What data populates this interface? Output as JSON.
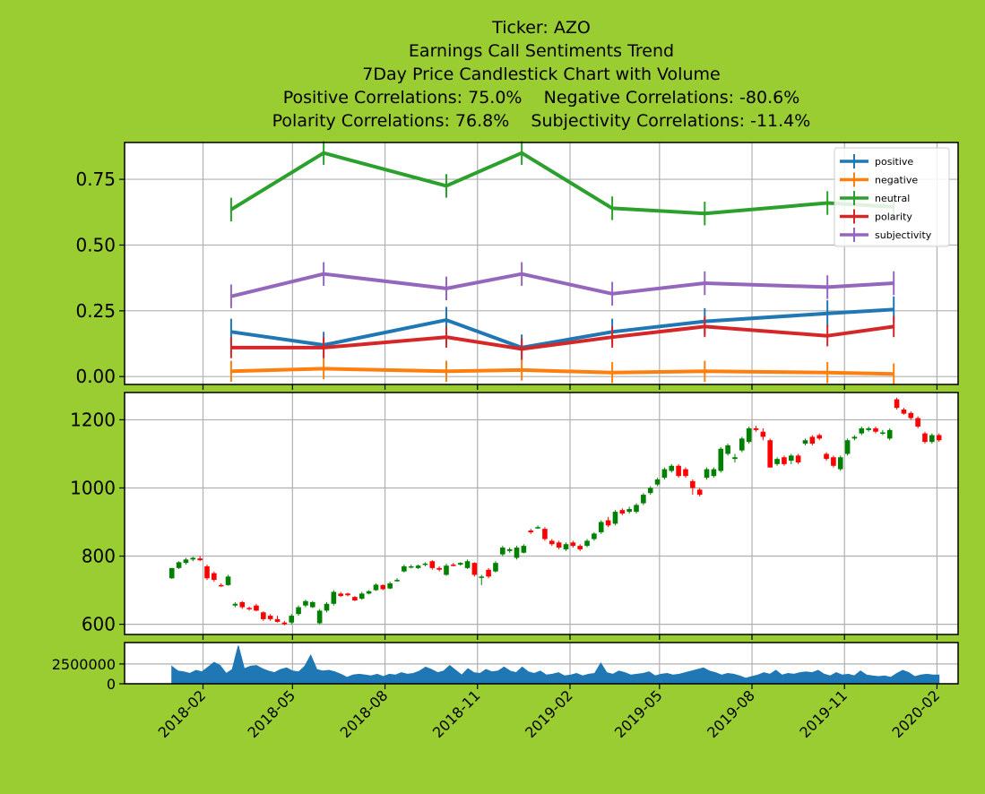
{
  "chart_title": {
    "line1": "Ticker: AZO",
    "line2": "Earnings Call Sentiments Trend",
    "line3": "7Day Price Candlestick Chart with Volume",
    "line4": "Positive Correlations: 75.0%    Negative Correlations: -80.6%",
    "line5": "Polarity Correlations: 76.8%    Subjectivity Correlations: -11.4%"
  },
  "colors": {
    "background": "#9acd32",
    "positive": "#1f77b4",
    "negative": "#ff7f0e",
    "neutral": "#2ca02c",
    "polarity": "#d62728",
    "subjectivity": "#9467bd",
    "up_candle": "#008000",
    "down_candle": "#ff0000",
    "volume": "#1f77b4",
    "grid": "#b0b0b0"
  },
  "chart_data": [
    {
      "type": "line",
      "name": "sentiments",
      "x": [
        "2018-03-01",
        "2018-06-01",
        "2018-10-01",
        "2018-12-15",
        "2019-03-15",
        "2019-06-15",
        "2019-10-15",
        "2019-12-20"
      ],
      "series": [
        {
          "name": "positive",
          "values": [
            0.17,
            0.12,
            0.215,
            0.11,
            0.17,
            0.21,
            0.24,
            0.255
          ],
          "err": 0.05
        },
        {
          "name": "negative",
          "values": [
            0.02,
            0.03,
            0.02,
            0.025,
            0.015,
            0.02,
            0.015,
            0.01
          ],
          "err": 0.04
        },
        {
          "name": "neutral",
          "values": [
            0.635,
            0.85,
            0.725,
            0.85,
            0.64,
            0.62,
            0.66,
            0.645
          ],
          "err": 0.045
        },
        {
          "name": "polarity",
          "values": [
            0.11,
            0.11,
            0.15,
            0.105,
            0.15,
            0.19,
            0.155,
            0.19
          ],
          "err": 0.04
        },
        {
          "name": "subjectivity",
          "values": [
            0.305,
            0.39,
            0.335,
            0.39,
            0.315,
            0.355,
            0.34,
            0.355
          ],
          "err": 0.045
        }
      ],
      "ylim": [
        -0.03,
        0.89
      ],
      "yticks": [
        0.0,
        0.25,
        0.5,
        0.75
      ],
      "ytick_labels": [
        "0.00",
        "0.25",
        "0.50",
        "0.75"
      ],
      "legend_position": "upper-right",
      "grid": true
    },
    {
      "type": "candlestick",
      "name": "price",
      "ylim": [
        570,
        1280
      ],
      "yticks": [
        600,
        800,
        1000,
        1200
      ],
      "ytick_labels": [
        "600",
        "800",
        "1000",
        "1200"
      ],
      "grid": true,
      "candles": [
        {
          "d": "2018-01-01",
          "o": 735,
          "h": 765,
          "l": 733,
          "c": 765
        },
        {
          "d": "2018-01-08",
          "o": 765,
          "h": 785,
          "l": 762,
          "c": 782
        },
        {
          "d": "2018-01-15",
          "o": 780,
          "h": 795,
          "l": 775,
          "c": 790
        },
        {
          "d": "2018-01-22",
          "o": 790,
          "h": 798,
          "l": 785,
          "c": 795
        },
        {
          "d": "2018-01-29",
          "o": 793,
          "h": 800,
          "l": 785,
          "c": 788
        },
        {
          "d": "2018-02-05",
          "o": 770,
          "h": 775,
          "l": 730,
          "c": 735
        },
        {
          "d": "2018-02-12",
          "o": 750,
          "h": 755,
          "l": 725,
          "c": 730
        },
        {
          "d": "2018-02-19",
          "o": 715,
          "h": 720,
          "l": 710,
          "c": 713
        },
        {
          "d": "2018-02-26",
          "o": 715,
          "h": 745,
          "l": 713,
          "c": 740
        },
        {
          "d": "2018-03-05",
          "o": 655,
          "h": 665,
          "l": 650,
          "c": 660
        },
        {
          "d": "2018-03-12",
          "o": 665,
          "h": 668,
          "l": 645,
          "c": 650
        },
        {
          "d": "2018-03-19",
          "o": 648,
          "h": 652,
          "l": 640,
          "c": 645
        },
        {
          "d": "2018-03-26",
          "o": 655,
          "h": 660,
          "l": 638,
          "c": 640
        },
        {
          "d": "2018-04-02",
          "o": 635,
          "h": 638,
          "l": 610,
          "c": 615
        },
        {
          "d": "2018-04-09",
          "o": 625,
          "h": 630,
          "l": 610,
          "c": 615
        },
        {
          "d": "2018-04-16",
          "o": 615,
          "h": 625,
          "l": 605,
          "c": 607
        },
        {
          "d": "2018-04-23",
          "o": 605,
          "h": 610,
          "l": 597,
          "c": 600
        },
        {
          "d": "2018-04-30",
          "o": 605,
          "h": 630,
          "l": 600,
          "c": 625
        },
        {
          "d": "2018-05-07",
          "o": 630,
          "h": 655,
          "l": 625,
          "c": 650
        },
        {
          "d": "2018-05-14",
          "o": 655,
          "h": 672,
          "l": 650,
          "c": 668
        },
        {
          "d": "2018-05-21",
          "o": 650,
          "h": 668,
          "l": 648,
          "c": 665
        },
        {
          "d": "2018-05-28",
          "o": 603,
          "h": 645,
          "l": 600,
          "c": 640
        },
        {
          "d": "2018-06-04",
          "o": 640,
          "h": 665,
          "l": 635,
          "c": 660
        },
        {
          "d": "2018-06-11",
          "o": 660,
          "h": 700,
          "l": 655,
          "c": 695
        },
        {
          "d": "2018-06-18",
          "o": 690,
          "h": 695,
          "l": 680,
          "c": 683
        },
        {
          "d": "2018-06-25",
          "o": 690,
          "h": 693,
          "l": 682,
          "c": 685
        },
        {
          "d": "2018-07-02",
          "o": 680,
          "h": 683,
          "l": 668,
          "c": 670
        },
        {
          "d": "2018-07-09",
          "o": 675,
          "h": 695,
          "l": 672,
          "c": 690
        },
        {
          "d": "2018-07-16",
          "o": 690,
          "h": 700,
          "l": 688,
          "c": 697
        },
        {
          "d": "2018-07-23",
          "o": 700,
          "h": 720,
          "l": 698,
          "c": 716
        },
        {
          "d": "2018-07-30",
          "o": 715,
          "h": 717,
          "l": 700,
          "c": 703
        },
        {
          "d": "2018-08-06",
          "o": 705,
          "h": 725,
          "l": 703,
          "c": 720
        },
        {
          "d": "2018-08-13",
          "o": 728,
          "h": 735,
          "l": 725,
          "c": 730
        },
        {
          "d": "2018-08-20",
          "o": 755,
          "h": 775,
          "l": 752,
          "c": 770
        },
        {
          "d": "2018-08-27",
          "o": 768,
          "h": 775,
          "l": 764,
          "c": 770
        },
        {
          "d": "2018-09-03",
          "o": 765,
          "h": 775,
          "l": 762,
          "c": 772
        },
        {
          "d": "2018-09-10",
          "o": 775,
          "h": 782,
          "l": 770,
          "c": 778
        },
        {
          "d": "2018-09-17",
          "o": 785,
          "h": 788,
          "l": 760,
          "c": 765
        },
        {
          "d": "2018-09-24",
          "o": 765,
          "h": 770,
          "l": 755,
          "c": 760
        },
        {
          "d": "2018-10-01",
          "o": 745,
          "h": 778,
          "l": 742,
          "c": 772
        },
        {
          "d": "2018-10-08",
          "o": 775,
          "h": 780,
          "l": 770,
          "c": 773
        },
        {
          "d": "2018-10-15",
          "o": 775,
          "h": 782,
          "l": 772,
          "c": 780
        },
        {
          "d": "2018-10-22",
          "o": 765,
          "h": 790,
          "l": 762,
          "c": 785
        },
        {
          "d": "2018-10-29",
          "o": 780,
          "h": 782,
          "l": 740,
          "c": 745
        },
        {
          "d": "2018-11-05",
          "o": 738,
          "h": 745,
          "l": 715,
          "c": 740
        },
        {
          "d": "2018-11-12",
          "o": 760,
          "h": 765,
          "l": 735,
          "c": 740
        },
        {
          "d": "2018-11-19",
          "o": 755,
          "h": 785,
          "l": 752,
          "c": 780
        },
        {
          "d": "2018-11-26",
          "o": 805,
          "h": 830,
          "l": 800,
          "c": 825
        },
        {
          "d": "2018-12-03",
          "o": 815,
          "h": 825,
          "l": 810,
          "c": 820
        },
        {
          "d": "2018-12-10",
          "o": 795,
          "h": 830,
          "l": 790,
          "c": 825
        },
        {
          "d": "2018-12-17",
          "o": 810,
          "h": 835,
          "l": 808,
          "c": 830
        },
        {
          "d": "2018-12-24",
          "o": 875,
          "h": 880,
          "l": 865,
          "c": 870
        },
        {
          "d": "2018-12-31",
          "o": 885,
          "h": 890,
          "l": 880,
          "c": 885
        },
        {
          "d": "2019-01-07",
          "o": 880,
          "h": 885,
          "l": 845,
          "c": 850
        },
        {
          "d": "2019-01-14",
          "o": 845,
          "h": 850,
          "l": 830,
          "c": 835
        },
        {
          "d": "2019-01-21",
          "o": 840,
          "h": 845,
          "l": 820,
          "c": 825
        },
        {
          "d": "2019-01-28",
          "o": 820,
          "h": 840,
          "l": 815,
          "c": 835
        },
        {
          "d": "2019-02-04",
          "o": 840,
          "h": 845,
          "l": 825,
          "c": 830
        },
        {
          "d": "2019-02-11",
          "o": 830,
          "h": 835,
          "l": 815,
          "c": 820
        },
        {
          "d": "2019-02-18",
          "o": 830,
          "h": 850,
          "l": 826,
          "c": 845
        },
        {
          "d": "2019-02-25",
          "o": 850,
          "h": 870,
          "l": 845,
          "c": 866
        },
        {
          "d": "2019-03-04",
          "o": 870,
          "h": 905,
          "l": 865,
          "c": 900
        },
        {
          "d": "2019-03-11",
          "o": 905,
          "h": 915,
          "l": 885,
          "c": 890
        },
        {
          "d": "2019-03-18",
          "o": 895,
          "h": 935,
          "l": 890,
          "c": 930
        },
        {
          "d": "2019-03-25",
          "o": 935,
          "h": 940,
          "l": 920,
          "c": 925
        },
        {
          "d": "2019-04-01",
          "o": 930,
          "h": 945,
          "l": 925,
          "c": 938
        },
        {
          "d": "2019-04-08",
          "o": 930,
          "h": 955,
          "l": 925,
          "c": 950
        },
        {
          "d": "2019-04-15",
          "o": 955,
          "h": 985,
          "l": 950,
          "c": 980
        },
        {
          "d": "2019-04-22",
          "o": 985,
          "h": 1005,
          "l": 980,
          "c": 1000
        },
        {
          "d": "2019-04-29",
          "o": 1010,
          "h": 1030,
          "l": 1005,
          "c": 1025
        },
        {
          "d": "2019-05-06",
          "o": 1030,
          "h": 1060,
          "l": 1025,
          "c": 1055
        },
        {
          "d": "2019-05-13",
          "o": 1050,
          "h": 1070,
          "l": 1045,
          "c": 1065
        },
        {
          "d": "2019-05-20",
          "o": 1065,
          "h": 1070,
          "l": 1030,
          "c": 1035
        },
        {
          "d": "2019-05-27",
          "o": 1055,
          "h": 1060,
          "l": 1030,
          "c": 1035
        },
        {
          "d": "2019-06-03",
          "o": 1020,
          "h": 1025,
          "l": 980,
          "c": 1000
        },
        {
          "d": "2019-06-10",
          "o": 995,
          "h": 1000,
          "l": 975,
          "c": 980
        },
        {
          "d": "2019-06-17",
          "o": 1030,
          "h": 1060,
          "l": 1025,
          "c": 1055
        },
        {
          "d": "2019-06-24",
          "o": 1035,
          "h": 1060,
          "l": 1030,
          "c": 1055
        },
        {
          "d": "2019-07-01",
          "o": 1050,
          "h": 1120,
          "l": 1045,
          "c": 1115
        },
        {
          "d": "2019-07-08",
          "o": 1100,
          "h": 1130,
          "l": 1095,
          "c": 1125
        },
        {
          "d": "2019-07-15",
          "o": 1085,
          "h": 1100,
          "l": 1075,
          "c": 1090
        },
        {
          "d": "2019-07-22",
          "o": 1110,
          "h": 1150,
          "l": 1105,
          "c": 1145
        },
        {
          "d": "2019-07-29",
          "o": 1135,
          "h": 1180,
          "l": 1130,
          "c": 1175
        },
        {
          "d": "2019-08-05",
          "o": 1175,
          "h": 1182,
          "l": 1165,
          "c": 1170
        },
        {
          "d": "2019-08-12",
          "o": 1165,
          "h": 1175,
          "l": 1140,
          "c": 1150
        },
        {
          "d": "2019-08-19",
          "o": 1140,
          "h": 1145,
          "l": 1060,
          "c": 1060
        },
        {
          "d": "2019-08-26",
          "o": 1070,
          "h": 1090,
          "l": 1065,
          "c": 1085
        },
        {
          "d": "2019-09-02",
          "o": 1090,
          "h": 1095,
          "l": 1065,
          "c": 1070
        },
        {
          "d": "2019-09-09",
          "o": 1080,
          "h": 1100,
          "l": 1070,
          "c": 1095
        },
        {
          "d": "2019-09-16",
          "o": 1095,
          "h": 1100,
          "l": 1070,
          "c": 1075
        },
        {
          "d": "2019-09-23",
          "o": 1130,
          "h": 1145,
          "l": 1125,
          "c": 1140
        },
        {
          "d": "2019-09-30",
          "o": 1150,
          "h": 1155,
          "l": 1125,
          "c": 1130
        },
        {
          "d": "2019-10-07",
          "o": 1155,
          "h": 1160,
          "l": 1140,
          "c": 1145
        },
        {
          "d": "2019-10-14",
          "o": 1100,
          "h": 1105,
          "l": 1080,
          "c": 1085
        },
        {
          "d": "2019-10-21",
          "o": 1090,
          "h": 1095,
          "l": 1060,
          "c": 1065
        },
        {
          "d": "2019-10-28",
          "o": 1055,
          "h": 1095,
          "l": 1050,
          "c": 1090
        },
        {
          "d": "2019-11-04",
          "o": 1100,
          "h": 1145,
          "l": 1095,
          "c": 1140
        },
        {
          "d": "2019-11-11",
          "o": 1145,
          "h": 1155,
          "l": 1140,
          "c": 1150
        },
        {
          "d": "2019-11-18",
          "o": 1160,
          "h": 1180,
          "l": 1155,
          "c": 1175
        },
        {
          "d": "2019-11-25",
          "o": 1170,
          "h": 1180,
          "l": 1165,
          "c": 1175
        },
        {
          "d": "2019-12-02",
          "o": 1175,
          "h": 1180,
          "l": 1160,
          "c": 1165
        },
        {
          "d": "2019-12-09",
          "o": 1160,
          "h": 1170,
          "l": 1155,
          "c": 1163
        },
        {
          "d": "2019-12-16",
          "o": 1145,
          "h": 1175,
          "l": 1140,
          "c": 1170
        },
        {
          "d": "2019-12-23",
          "o": 1260,
          "h": 1265,
          "l": 1230,
          "c": 1235
        },
        {
          "d": "2019-12-30",
          "o": 1230,
          "h": 1235,
          "l": 1215,
          "c": 1218
        },
        {
          "d": "2020-01-06",
          "o": 1220,
          "h": 1225,
          "l": 1200,
          "c": 1205
        },
        {
          "d": "2020-01-13",
          "o": 1205,
          "h": 1210,
          "l": 1175,
          "c": 1180
        },
        {
          "d": "2020-01-20",
          "o": 1160,
          "h": 1165,
          "l": 1130,
          "c": 1135
        },
        {
          "d": "2020-01-27",
          "o": 1135,
          "h": 1160,
          "l": 1130,
          "c": 1155
        },
        {
          "d": "2020-02-03",
          "o": 1155,
          "h": 1160,
          "l": 1135,
          "c": 1140
        }
      ]
    },
    {
      "type": "area",
      "name": "volume",
      "ylim": [
        0,
        5200000
      ],
      "yticks": [
        0,
        2500000
      ],
      "ytick_labels": [
        "0",
        "2500000"
      ],
      "grid": true,
      "x_start": "2018-01-01",
      "x_end": "2020-02-03",
      "values": [
        2200000,
        1600000,
        1500000,
        1300000,
        1700000,
        1500000,
        2100000,
        2700000,
        2300000,
        1300000,
        1800000,
        4800000,
        1900000,
        2200000,
        2300000,
        1900000,
        1600000,
        1400000,
        1800000,
        2000000,
        1600000,
        1500000,
        2200000,
        3600000,
        1800000,
        1600000,
        1700000,
        1500000,
        1200000,
        800000,
        1100000,
        1200000,
        1100000,
        1000000,
        1200000,
        900000,
        1200000,
        1100000,
        1400000,
        1200000,
        1300000,
        1600000,
        2100000,
        1800000,
        1400000,
        1600000,
        2300000,
        1700000,
        1100000,
        1900000,
        1400000,
        1300000,
        1800000,
        1500000,
        1600000,
        2100000,
        1600000,
        1400000,
        2100000,
        1500000,
        1300000,
        1600000,
        1100000,
        1200000,
        1400000,
        1000000,
        1100000,
        1300000,
        1000000,
        1200000,
        1300000,
        2600000,
        1400000,
        1200000,
        1600000,
        1400000,
        1100000,
        1200000,
        1300000,
        1500000,
        1000000,
        1200000,
        1300000,
        1100000,
        1200000,
        1400000,
        1600000,
        1800000,
        2000000,
        1600000,
        1400000,
        1100000,
        1300000,
        1200000,
        1000000,
        700000,
        900000,
        1100000,
        1400000,
        1200000,
        1700000,
        1100000,
        1300000,
        1200000,
        1400000,
        1500000,
        1400000,
        1700000,
        1200000,
        1000000,
        1400000,
        1100000,
        1200000,
        1000000,
        1600000,
        1100000,
        1000000,
        900000,
        1000000,
        800000,
        1300000,
        1700000,
        1400000,
        900000,
        1100000,
        1200000,
        1100000,
        1100000
      ],
      "xticks": [
        "2018-02",
        "2018-05",
        "2018-08",
        "2018-11",
        "2019-02",
        "2019-05",
        "2019-08",
        "2019-11",
        "2020-02"
      ]
    }
  ],
  "legend": [
    "positive",
    "negative",
    "neutral",
    "polarity",
    "subjectivity"
  ]
}
